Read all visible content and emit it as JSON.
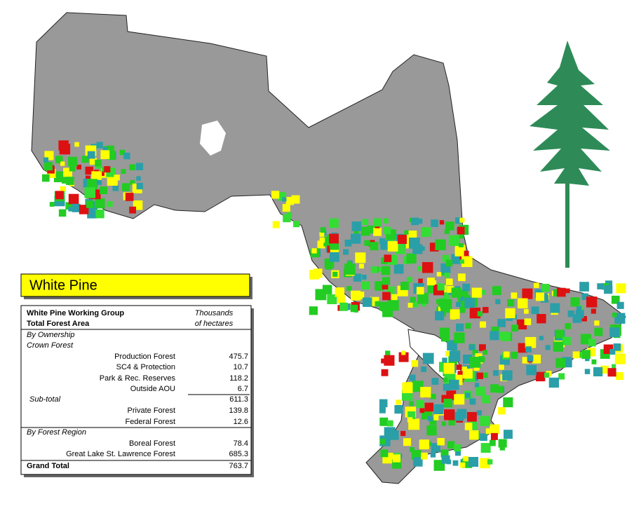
{
  "title": "White Pine",
  "table": {
    "heading": {
      "left": [
        "White Pine Working Group",
        "Total Forest Area"
      ],
      "right": [
        "Thousands",
        "of hectares"
      ]
    },
    "rows": [
      [
        "By Ownership"
      ],
      [
        "Crown Forest"
      ],
      [
        "Production Forest",
        "475.7"
      ],
      [
        "SC4 & Protection",
        "10.7"
      ],
      [
        "Park & Rec. Reserves",
        "118.2"
      ],
      [
        "Outside AOU",
        "6.7"
      ],
      [
        "Sub-total",
        "611.3"
      ],
      [
        "Private Forest",
        "139.8"
      ],
      [
        "Federal Forest",
        "12.6"
      ],
      [
        "By Forest Region"
      ],
      [
        "Boreal Forest",
        "78.4"
      ],
      [
        "Great Lake St. Lawrence Forest",
        "685.3"
      ],
      [
        "Grand Total",
        "763.7"
      ]
    ]
  }
}
